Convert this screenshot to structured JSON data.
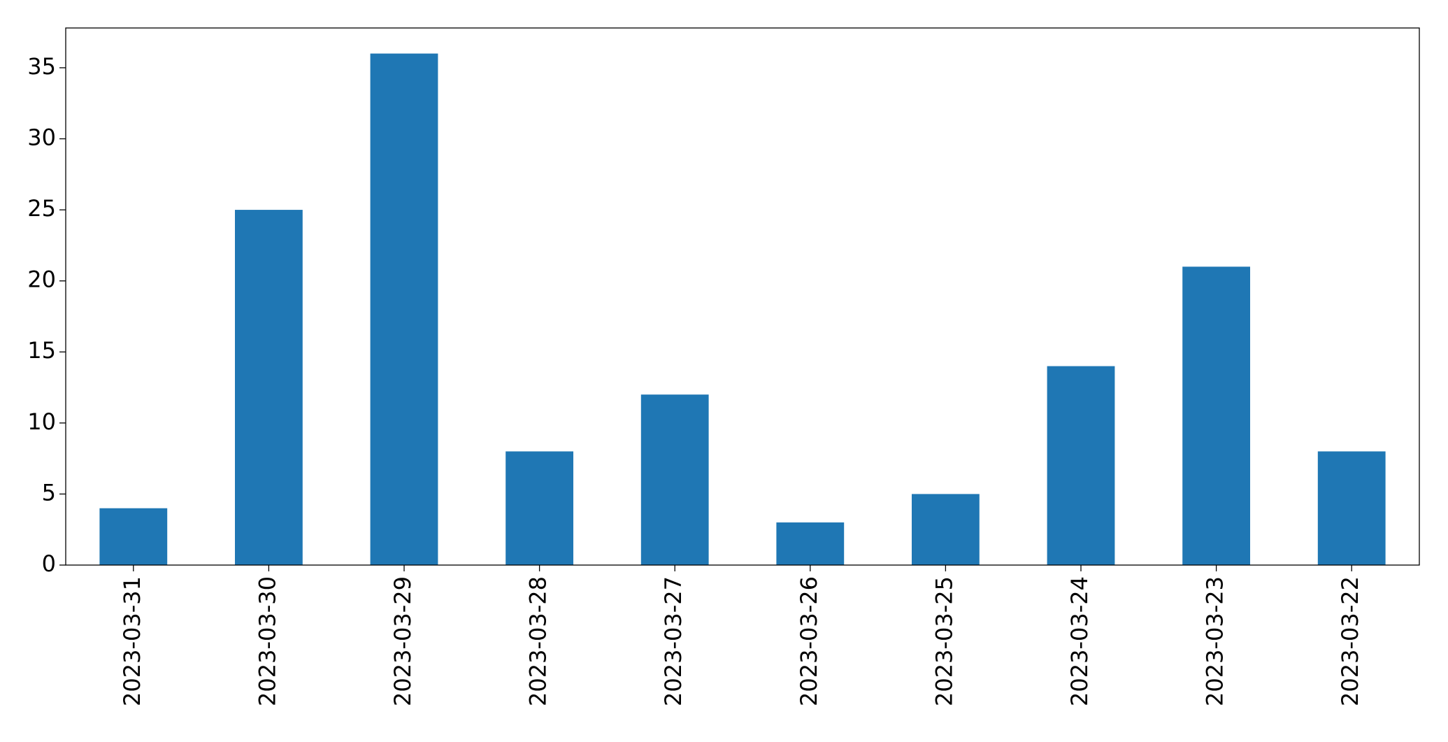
{
  "chart_data": {
    "type": "bar",
    "categories": [
      "2023-03-31",
      "2023-03-30",
      "2023-03-29",
      "2023-03-28",
      "2023-03-27",
      "2023-03-26",
      "2023-03-25",
      "2023-03-24",
      "2023-03-23",
      "2023-03-22"
    ],
    "values": [
      4,
      25,
      36,
      8,
      12,
      3,
      5,
      14,
      21,
      8
    ],
    "color": "#1f77b4",
    "ylim": [
      0,
      37.8
    ],
    "yticks": [
      0,
      5,
      10,
      15,
      20,
      25,
      30,
      35
    ],
    "grid": false
  }
}
